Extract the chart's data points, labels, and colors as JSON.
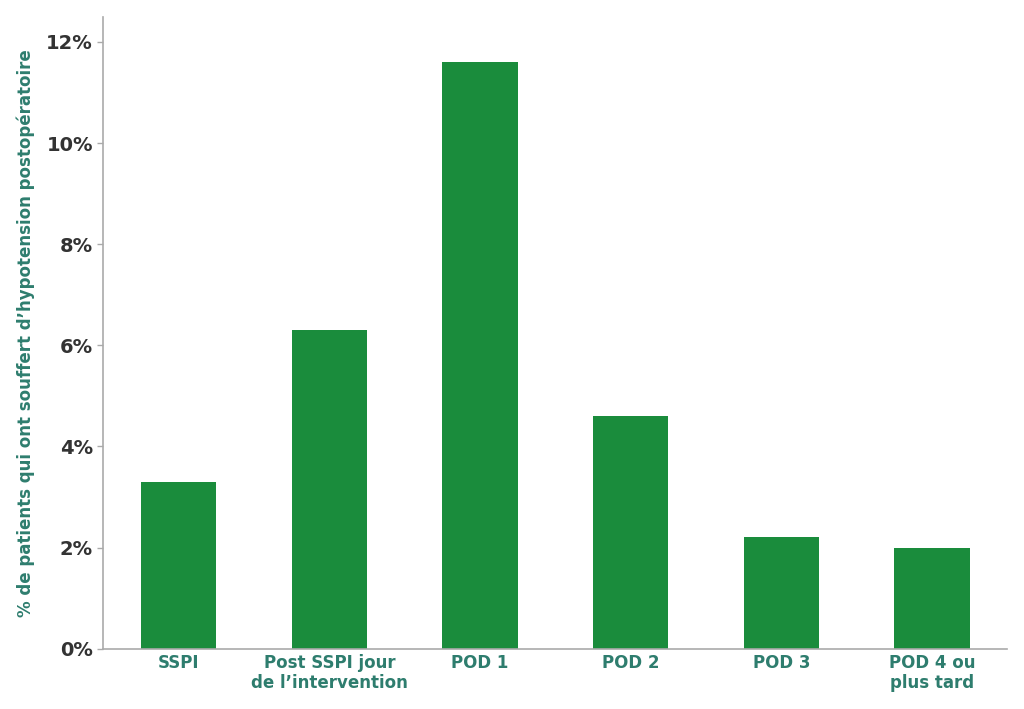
{
  "categories": [
    "SSPI",
    "Post SSPI jour\nde l’intervention",
    "POD 1",
    "POD 2",
    "POD 3",
    "POD 4 ou\nplus tard"
  ],
  "values": [
    3.3,
    6.3,
    11.6,
    4.6,
    2.2,
    2.0
  ],
  "bar_color": "#1a8c3c",
  "ylabel": "% de patients qui ont souffert d’hypotension postopératoire",
  "ylim": [
    0,
    12.5
  ],
  "yticks": [
    0,
    2,
    4,
    6,
    8,
    10,
    12
  ],
  "ytick_labels": [
    "0%",
    "2%",
    "4%",
    "6%",
    "8%",
    "10%",
    "12%"
  ],
  "background_color": "#ffffff",
  "ylabel_color": "#2e7d6e",
  "xtick_color": "#2e7d6e",
  "ytick_color": "#333333",
  "bar_width": 0.5,
  "spine_color": "#aaaaaa"
}
